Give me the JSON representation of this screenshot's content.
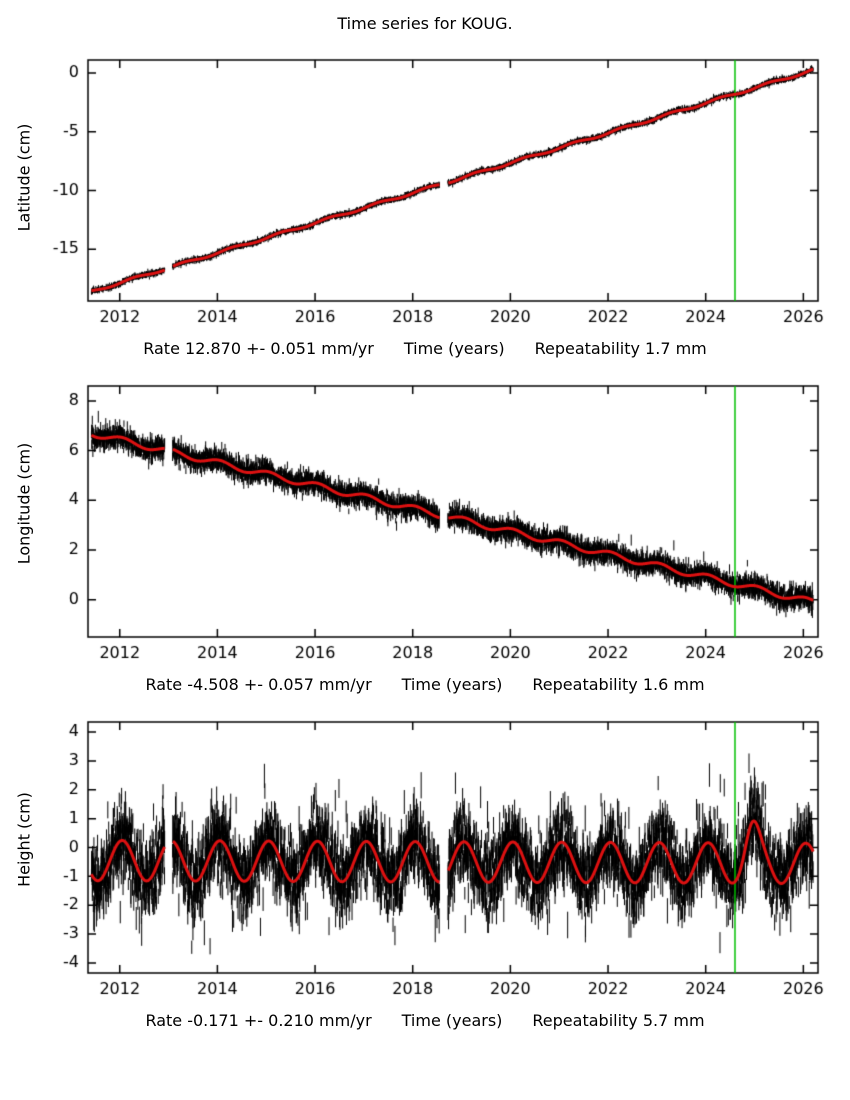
{
  "chart_data": {
    "type": "scatter",
    "title": "Time series for KOUG.",
    "x_axis": {
      "label": "Time (years)",
      "min": 2011.35,
      "max": 2026.3,
      "ticks": [
        2012,
        2014,
        2016,
        2018,
        2020,
        2022,
        2024,
        2026
      ],
      "data_start": 2011.42,
      "data_end": 2026.2
    },
    "event_marker": {
      "x": 2024.6,
      "color": "#00c000"
    },
    "data_gaps": [
      [
        2012.92,
        2013.08
      ],
      [
        2018.55,
        2018.72
      ]
    ],
    "colors": {
      "points": "#000000",
      "fit": "#dd1111",
      "frame": "#000000"
    },
    "panels": [
      {
        "id": "latitude",
        "ylabel": "Latitude (cm)",
        "ylim": [
          -19.4,
          1.1
        ],
        "yticks": [
          0,
          -5,
          -10,
          -15
        ],
        "rate_label": "Rate 12.870 +- 0.051 mm/yr",
        "xlabel": "Time (years)",
        "repeatability_label": "Repeatability 1.7 mm",
        "rate_mm_yr": 12.87,
        "rate_sigma_mm_yr": 0.051,
        "repeatability_mm": 1.7,
        "fit_line": {
          "x": [
            2011.42,
            2026.2
          ],
          "y": [
            -18.6,
            0.25
          ]
        },
        "seasonal": {
          "amplitude": 0.1,
          "phase_peak": 0.3
        },
        "scatter_sigma": 0.1,
        "errorbar": 0.13,
        "outlier_frac": 0.0,
        "outlier_sigma": 0.0,
        "seed": 11
      },
      {
        "id": "longitude",
        "ylabel": "Longitude (cm)",
        "ylim": [
          -1.5,
          8.6
        ],
        "yticks": [
          0,
          2,
          4,
          6,
          8
        ],
        "rate_label": "Rate -4.508 +- 0.057 mm/yr",
        "xlabel": "Time (years)",
        "repeatability_label": "Repeatability 1.6 mm",
        "rate_mm_yr": -4.508,
        "rate_sigma_mm_yr": 0.057,
        "repeatability_mm": 1.6,
        "fit_line": {
          "x": [
            2011.42,
            2026.2
          ],
          "y": [
            6.7,
            -0.1
          ]
        },
        "seasonal": {
          "amplitude": 0.12,
          "phase_peak": 0.05
        },
        "scatter_sigma": 0.2,
        "errorbar": 0.18,
        "outlier_frac": 0.02,
        "outlier_sigma": 0.3,
        "seed": 22
      },
      {
        "id": "height",
        "ylabel": "Height (cm)",
        "ylim": [
          -4.35,
          4.35
        ],
        "yticks": [
          -4,
          -3,
          -2,
          -1,
          0,
          1,
          2,
          3,
          4
        ],
        "rate_label": "Rate -0.171 +- 0.210 mm/yr",
        "xlabel": "Time (years)",
        "repeatability_label": "Repeatability 5.7 mm",
        "rate_mm_yr": -0.171,
        "rate_sigma_mm_yr": 0.21,
        "repeatability_mm": 5.7,
        "fit_line": {
          "x": [
            2011.42,
            2026.2
          ],
          "y": [
            -0.45,
            -0.55
          ]
        },
        "seasonal": {
          "amplitude": 0.7,
          "phase_peak": 0.05
        },
        "fit_bump": {
          "center": 2024.95,
          "sigma": 0.18,
          "amplitude": 0.85
        },
        "scatter_sigma": 0.6,
        "errorbar": 0.35,
        "outlier_frac": 0.06,
        "outlier_sigma": 1.0,
        "seed": 33
      }
    ]
  }
}
